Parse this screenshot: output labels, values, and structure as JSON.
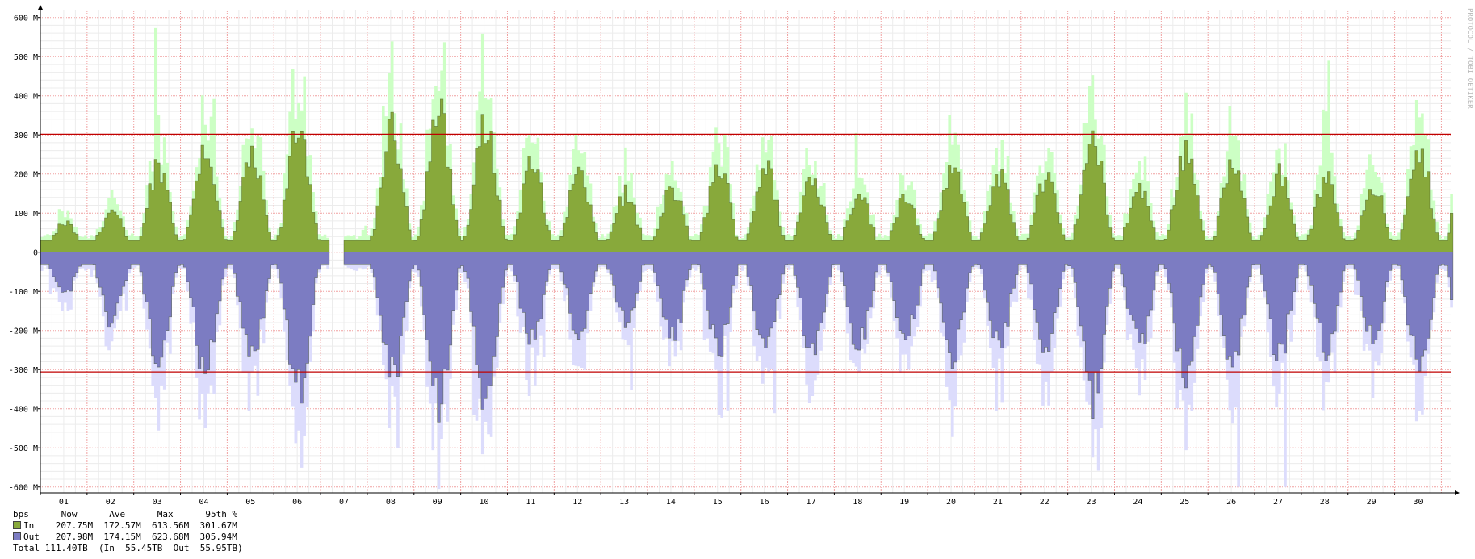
{
  "chart_data": {
    "type": "area",
    "title": "",
    "watermark": "PROTOCOL / TOBI OETIKER",
    "x_ticks": [
      "01",
      "02",
      "03",
      "04",
      "05",
      "06",
      "07",
      "08",
      "09",
      "10",
      "11",
      "12",
      "13",
      "14",
      "15",
      "16",
      "17",
      "18",
      "19",
      "20",
      "21",
      "22",
      "23",
      "24",
      "25",
      "26",
      "27",
      "28",
      "29",
      "30"
    ],
    "y_ticks": [
      {
        "value": 600,
        "label": "600 M"
      },
      {
        "value": 500,
        "label": "500 M"
      },
      {
        "value": 400,
        "label": "400 M"
      },
      {
        "value": 300,
        "label": "300 M"
      },
      {
        "value": 200,
        "label": "200 M"
      },
      {
        "value": 100,
        "label": "100 M"
      },
      {
        "value": 0,
        "label": "0"
      },
      {
        "value": -100,
        "label": "-100 M"
      },
      {
        "value": -200,
        "label": "-200 M"
      },
      {
        "value": -300,
        "label": "-300 M"
      },
      {
        "value": -400,
        "label": "-400 M"
      },
      {
        "value": -500,
        "label": "-500 M"
      },
      {
        "value": -600,
        "label": "-600 M"
      }
    ],
    "y_range": [
      -615,
      620
    ],
    "x_range_days": [
      0.5,
      30.7
    ],
    "grid": true,
    "percentile_95_lines": [
      301.67,
      -305.94
    ],
    "gap_days": [
      6.65,
      7.0
    ],
    "series": [
      {
        "name": "In",
        "color": "#88a93b",
        "max_color": "#ccffc4",
        "avg_daily": [
          60,
          85,
          180,
          215,
          190,
          260,
          0,
          250,
          290,
          260,
          180,
          160,
          120,
          130,
          175,
          175,
          160,
          125,
          120,
          175,
          160,
          150,
          230,
          130,
          210,
          180,
          160,
          150,
          140,
          200
        ]
      },
      {
        "name": "Out",
        "color": "#7c7cc2",
        "max_color": "#dcdcfc",
        "avg_daily": [
          -85,
          -140,
          -220,
          -240,
          -225,
          -280,
          0,
          -260,
          -320,
          -300,
          -190,
          -165,
          -145,
          -175,
          -205,
          -210,
          -210,
          -190,
          -175,
          -215,
          -185,
          -190,
          -300,
          -190,
          -265,
          -225,
          -215,
          -195,
          -180,
          -240
        ]
      }
    ],
    "legend": {
      "header": "bps      Now      Ave      Max      95th %",
      "rows": [
        {
          "name": "In",
          "text": "In    207.75M  172.57M  613.56M  301.67M",
          "color": "#88a93b"
        },
        {
          "name": "Out",
          "text": "Out   207.98M  174.15M  623.68M  305.94M",
          "color": "#7c7cc2"
        }
      ],
      "total": "Total 111.40TB  (In  55.45TB  Out  55.95TB)"
    }
  }
}
